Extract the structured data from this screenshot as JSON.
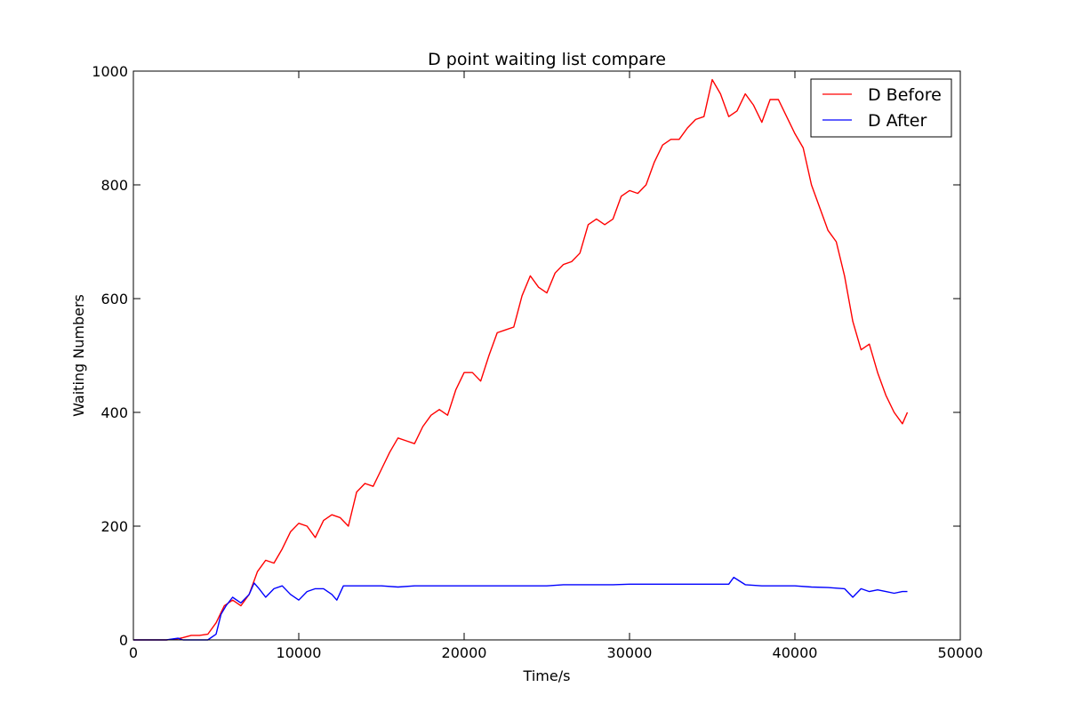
{
  "chart_data": {
    "type": "line",
    "title": "D point waiting list compare",
    "xlabel": "Time/s",
    "ylabel": "Waiting Numbers",
    "xlim": [
      0,
      50000
    ],
    "ylim": [
      0,
      1000
    ],
    "xticks": [
      0,
      10000,
      20000,
      30000,
      40000,
      50000
    ],
    "yticks": [
      0,
      200,
      400,
      600,
      800,
      1000
    ],
    "grid": false,
    "legend_position": "top-right",
    "series": [
      {
        "name": "D Before",
        "color": "#ff0000",
        "x": [
          0,
          1000,
          2000,
          2700,
          3000,
          3500,
          4000,
          4500,
          5000,
          5500,
          6000,
          6500,
          7000,
          7500,
          8000,
          8500,
          9000,
          9500,
          10000,
          10500,
          11000,
          11500,
          12000,
          12500,
          13000,
          13500,
          14000,
          14500,
          15000,
          15500,
          16000,
          16500,
          17000,
          17500,
          18000,
          18500,
          19000,
          19500,
          20000,
          20500,
          21000,
          21500,
          22000,
          22500,
          23000,
          23500,
          24000,
          24500,
          25000,
          25500,
          26000,
          26500,
          27000,
          27500,
          28000,
          28500,
          29000,
          29500,
          30000,
          30500,
          31000,
          31500,
          32000,
          32500,
          33000,
          33500,
          34000,
          34500,
          35000,
          35500,
          36000,
          36500,
          37000,
          37500,
          38000,
          38500,
          39000,
          39500,
          40000,
          40500,
          41000,
          41500,
          42000,
          42500,
          43000,
          43500,
          44000,
          44500,
          45000,
          45500,
          46000,
          46500,
          46800
        ],
        "y": [
          0,
          0,
          0,
          2,
          4,
          8,
          8,
          10,
          30,
          60,
          70,
          60,
          80,
          120,
          140,
          135,
          160,
          190,
          205,
          200,
          180,
          210,
          220,
          215,
          200,
          260,
          275,
          270,
          300,
          330,
          355,
          350,
          345,
          375,
          395,
          405,
          395,
          440,
          470,
          470,
          455,
          500,
          540,
          545,
          550,
          605,
          640,
          620,
          610,
          645,
          660,
          665,
          680,
          730,
          740,
          730,
          740,
          780,
          790,
          785,
          800,
          840,
          870,
          880,
          880,
          900,
          915,
          920,
          985,
          960,
          920,
          930,
          960,
          940,
          910,
          950,
          950,
          920,
          890,
          865,
          800,
          760,
          720,
          700,
          640,
          560,
          510,
          520,
          470,
          430,
          400,
          380,
          400
        ]
      },
      {
        "name": "D After",
        "color": "#0000ff",
        "x": [
          0,
          1000,
          2000,
          2700,
          3000,
          3500,
          4000,
          4500,
          5000,
          5300,
          5600,
          6000,
          6500,
          7000,
          7300,
          7600,
          8000,
          8500,
          9000,
          9500,
          10000,
          10500,
          11000,
          11500,
          12000,
          12300,
          12700,
          13000,
          14000,
          15000,
          16000,
          17000,
          18000,
          19000,
          20000,
          21000,
          22000,
          23000,
          24000,
          25000,
          26000,
          27000,
          28000,
          29000,
          30000,
          31000,
          32000,
          33000,
          34000,
          35000,
          36000,
          36300,
          37000,
          38000,
          39000,
          40000,
          41000,
          42000,
          43000,
          43500,
          44000,
          44500,
          45000,
          45500,
          46000,
          46500,
          46800
        ],
        "y": [
          0,
          0,
          0,
          3,
          0,
          0,
          0,
          0,
          10,
          45,
          60,
          75,
          65,
          80,
          100,
          90,
          75,
          90,
          95,
          80,
          70,
          85,
          90,
          90,
          80,
          70,
          95,
          95,
          95,
          95,
          93,
          95,
          95,
          95,
          95,
          95,
          95,
          95,
          95,
          95,
          97,
          97,
          97,
          97,
          98,
          98,
          98,
          98,
          98,
          98,
          98,
          110,
          97,
          95,
          95,
          95,
          93,
          92,
          90,
          75,
          90,
          85,
          88,
          85,
          82,
          85,
          85
        ]
      }
    ]
  }
}
